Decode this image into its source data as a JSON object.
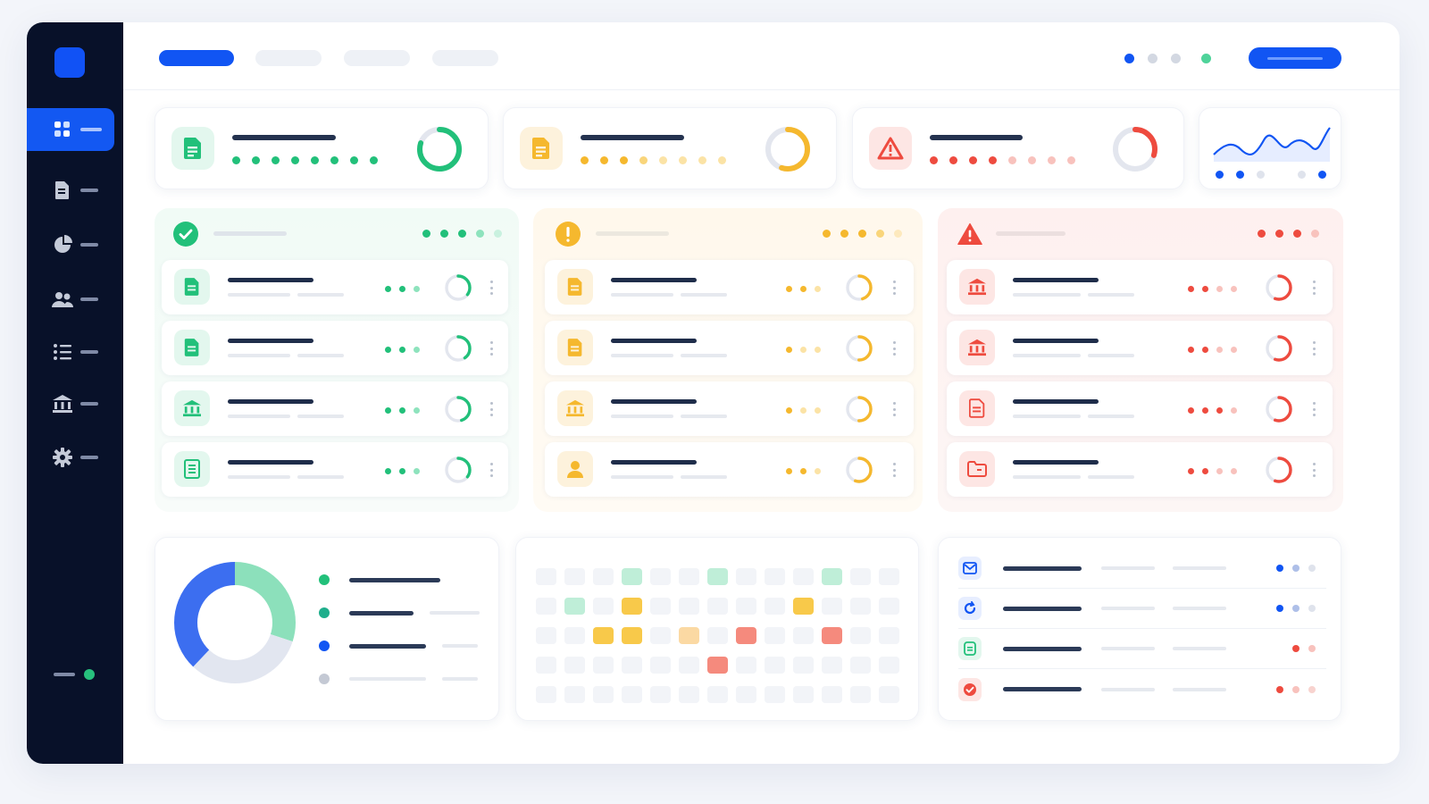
{
  "colors": {
    "accent": "#1155f3",
    "sidebar": "#081129",
    "success": "#22c07a",
    "warning": "#f5b82e",
    "danger": "#ee4b3f",
    "muted": "#e6e9ef"
  },
  "sidebar": {
    "items": [
      {
        "icon": "grid-icon",
        "active": true
      },
      {
        "icon": "document-icon",
        "active": false
      },
      {
        "icon": "pie-chart-icon",
        "active": false
      },
      {
        "icon": "users-icon",
        "active": false
      },
      {
        "icon": "list-icon",
        "active": false
      },
      {
        "icon": "bank-icon",
        "active": false
      },
      {
        "icon": "gear-icon",
        "active": false
      }
    ],
    "status": "online"
  },
  "header": {
    "tabs": [
      {
        "active": true
      },
      {
        "active": false
      },
      {
        "active": false
      },
      {
        "active": false
      }
    ]
  },
  "stats": [
    {
      "icon": "document-icon",
      "status": "success",
      "level": 0.8
    },
    {
      "icon": "document-icon",
      "status": "warning",
      "level": 0.55
    },
    {
      "icon": "warning-triangle-icon",
      "status": "danger",
      "level": 0.3
    },
    {
      "icon": "line-chart-icon",
      "status": "accent"
    }
  ],
  "columns": [
    {
      "status": "success",
      "header_icon": "check-circle-icon",
      "rows": [
        {
          "icon": "document-icon",
          "level": 0.35
        },
        {
          "icon": "document-icon",
          "level": 0.4
        },
        {
          "icon": "bank-icon",
          "level": 0.45
        },
        {
          "icon": "receipt-icon",
          "level": 0.35
        }
      ]
    },
    {
      "status": "warning",
      "header_icon": "exclamation-circle-icon",
      "rows": [
        {
          "icon": "document-icon",
          "level": 0.45
        },
        {
          "icon": "document-icon",
          "level": 0.5
        },
        {
          "icon": "bank-icon",
          "level": 0.5
        },
        {
          "icon": "user-icon",
          "level": 0.55
        }
      ]
    },
    {
      "status": "danger",
      "header_icon": "warning-triangle-icon",
      "rows": [
        {
          "icon": "bank-icon",
          "level": 0.55
        },
        {
          "icon": "bank-icon",
          "level": 0.55
        },
        {
          "icon": "document-icon",
          "level": 0.55
        },
        {
          "icon": "folder-icon",
          "level": 0.55
        }
      ]
    }
  ],
  "donut": {
    "segments": [
      {
        "color": "#8ce0bb",
        "value": 30
      },
      {
        "color": "#e2e6f0",
        "value": 32
      },
      {
        "color": "#3c6ef0",
        "value": 38
      }
    ],
    "legend_colors": [
      "#22c07a",
      "#1fae8c",
      "#1155f3",
      "#c4c9d4"
    ]
  },
  "heatmap": {
    "rows": 5,
    "cols": 13,
    "cells": [
      "e",
      "e",
      "e",
      "g",
      "e",
      "e",
      "g",
      "e",
      "e",
      "e",
      "g",
      "e",
      "e",
      "e",
      "g",
      "e",
      "y",
      "e",
      "e",
      "e",
      "e",
      "e",
      "y",
      "e",
      "e",
      "e",
      "e",
      "e",
      "y",
      "y",
      "e",
      "p",
      "e",
      "r",
      "e",
      "e",
      "r",
      "e",
      "e",
      "e",
      "e",
      "e",
      "e",
      "e",
      "e",
      "r",
      "e",
      "e",
      "e",
      "e",
      "e",
      "e",
      "e",
      "e",
      "e",
      "e",
      "e",
      "e",
      "e",
      "e",
      "e",
      "e",
      "e",
      "e",
      "e"
    ]
  },
  "activity": [
    {
      "icon": "mail-icon",
      "tone": "accent"
    },
    {
      "icon": "refresh-icon",
      "tone": "accent"
    },
    {
      "icon": "chat-icon",
      "tone": "success"
    },
    {
      "icon": "check-badge-icon",
      "tone": "danger"
    }
  ]
}
